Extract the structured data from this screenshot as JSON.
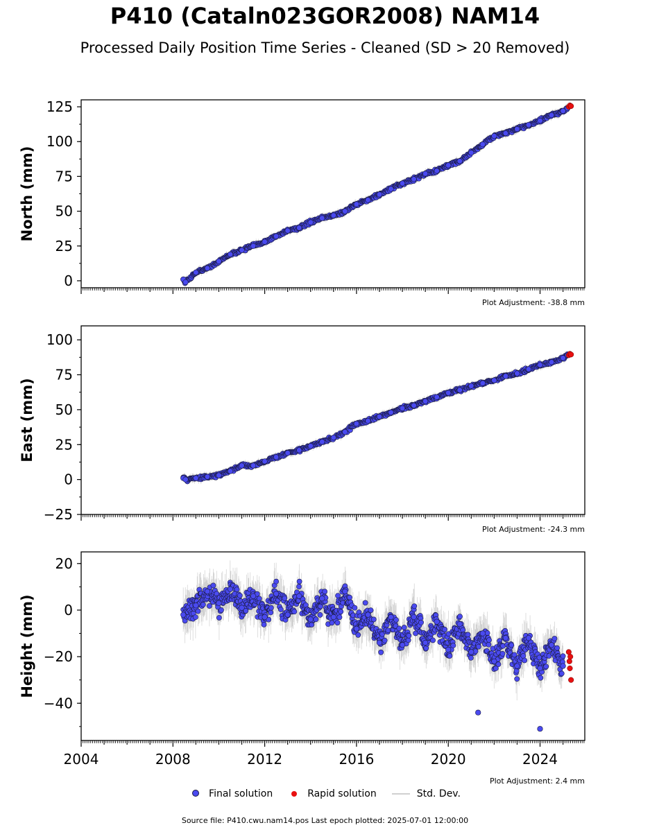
{
  "title": "P410 (Cataln023GOR2008) NAM14",
  "subtitle": "Processed Daily Position Time Series - Cleaned (SD > 20 Removed)",
  "colors": {
    "final": "#4a4af0",
    "final_edge": "#1a1a40",
    "rapid": "#e81010",
    "stddev": "#b4b4b4"
  },
  "x_axis": {
    "range": [
      2004.0,
      2025.95
    ],
    "ticks": [
      2004,
      2008,
      2012,
      2016,
      2020,
      2024
    ],
    "tick_labels": [
      "2004",
      "2008",
      "2012",
      "2016",
      "2020",
      "2024"
    ]
  },
  "legend": {
    "final": "Final solution",
    "rapid": "Rapid solution",
    "stddev": "Std. Dev."
  },
  "footer": "Source file: P410.cwu.nam14.pos  Last epoch plotted: 2025-07-01 12:00:00",
  "chart_data": [
    {
      "type": "scatter",
      "component": "north",
      "ylabel": "North (mm)",
      "ylim": [
        -5,
        130
      ],
      "yticks": [
        0,
        25,
        50,
        75,
        100,
        125
      ],
      "adjustment": "Plot Adjustment: -38.8 mm",
      "series": [
        {
          "name": "Final solution",
          "x": [
            2008.45,
            2008.55,
            2009.0,
            2009.5,
            2010.0,
            2010.5,
            2011.0,
            2011.5,
            2012.0,
            2012.5,
            2013.0,
            2013.5,
            2014.0,
            2014.5,
            2015.0,
            2015.5,
            2016.0,
            2016.5,
            2017.0,
            2017.5,
            2018.0,
            2018.5,
            2019.0,
            2019.5,
            2020.0,
            2020.5,
            2021.0,
            2021.5,
            2022.0,
            2022.5,
            2023.0,
            2023.5,
            2024.0,
            2024.5,
            2025.0,
            2025.2
          ],
          "y": [
            1,
            -1,
            6,
            9,
            14,
            19,
            22,
            25,
            28,
            32,
            36,
            38,
            42,
            45,
            47,
            50,
            55,
            58,
            62,
            66,
            70,
            73,
            77,
            79,
            83,
            86,
            92,
            98,
            104,
            106,
            109,
            112,
            115,
            119,
            122,
            124
          ]
        },
        {
          "name": "Rapid solution",
          "x": [
            2025.25,
            2025.3,
            2025.35
          ],
          "y": [
            125,
            126,
            125.5
          ]
        }
      ]
    },
    {
      "type": "scatter",
      "component": "east",
      "ylabel": "East (mm)",
      "ylim": [
        -25,
        110
      ],
      "yticks": [
        -25,
        0,
        25,
        50,
        75,
        100
      ],
      "adjustment": "Plot Adjustment: -24.3 mm",
      "series": [
        {
          "name": "Final solution",
          "x": [
            2008.45,
            2008.55,
            2009.0,
            2009.5,
            2010.0,
            2010.5,
            2011.0,
            2011.5,
            2012.0,
            2012.5,
            2013.0,
            2013.5,
            2014.0,
            2014.5,
            2015.0,
            2015.5,
            2016.0,
            2016.5,
            2017.0,
            2017.5,
            2018.0,
            2018.5,
            2019.0,
            2019.5,
            2020.0,
            2020.5,
            2021.0,
            2021.5,
            2022.0,
            2022.5,
            2023.0,
            2023.5,
            2024.0,
            2024.5,
            2025.0,
            2025.2
          ],
          "y": [
            1,
            0,
            1,
            2,
            3,
            6,
            10,
            10,
            13,
            16,
            19,
            21,
            24,
            27,
            30,
            34,
            40,
            42,
            45,
            48,
            51,
            53,
            56,
            59,
            62,
            64,
            67,
            69,
            71,
            74,
            76,
            79,
            82,
            84,
            87,
            89
          ]
        },
        {
          "name": "Rapid solution",
          "x": [
            2025.25,
            2025.3,
            2025.35
          ],
          "y": [
            89,
            90,
            89.5
          ]
        }
      ]
    },
    {
      "type": "scatter",
      "component": "height",
      "ylabel": "Height (mm)",
      "ylim": [
        -56,
        25
      ],
      "yticks": [
        -40,
        -20,
        0,
        20
      ],
      "adjustment": "Plot Adjustment: 2.4 mm",
      "series": [
        {
          "name": "Final solution",
          "x": [
            2008.45,
            2009.0,
            2009.5,
            2010.0,
            2010.5,
            2011.0,
            2011.5,
            2012.0,
            2012.5,
            2013.0,
            2013.5,
            2014.0,
            2014.5,
            2015.0,
            2015.5,
            2016.0,
            2016.5,
            2017.0,
            2017.5,
            2018.0,
            2018.5,
            2019.0,
            2019.5,
            2020.0,
            2020.5,
            2021.0,
            2021.5,
            2022.0,
            2022.5,
            2023.0,
            2023.5,
            2024.0,
            2024.5,
            2025.0,
            2021.3,
            2024.0
          ],
          "y": [
            -2,
            2,
            8,
            3,
            9,
            1,
            6,
            -3,
            7,
            -2,
            6,
            -4,
            5,
            -3,
            8,
            -8,
            -2,
            -14,
            -3,
            -15,
            -3,
            -14,
            -5,
            -17,
            -6,
            -18,
            -10,
            -22,
            -12,
            -24,
            -12,
            -25,
            -15,
            -24,
            -44,
            -51
          ]
        },
        {
          "name": "Rapid solution",
          "x": [
            2025.25,
            2025.28,
            2025.3,
            2025.32,
            2025.35
          ],
          "y": [
            -18,
            -22,
            -25,
            -20,
            -30
          ]
        }
      ]
    }
  ]
}
